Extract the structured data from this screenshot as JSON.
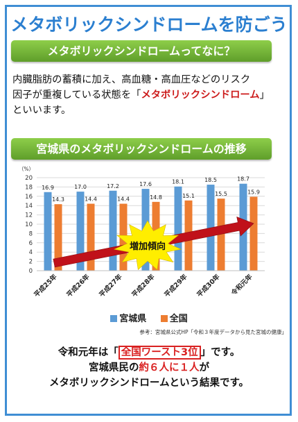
{
  "title": "メタボリックシンドロームを防ごう",
  "section1": {
    "banner": "メタボリックシンドロームってなに？",
    "line1": "内臓脂肪の蓄積に加え、高血糖・高血圧などのリスク",
    "line2_before": "因子が重複している状態を「",
    "line2_highlight": "メタボリックシンドローム",
    "line2_after": "」",
    "line3": "といいます。"
  },
  "section2": {
    "banner": "宮城県のメタボリックシンドロームの推移"
  },
  "chart_data": {
    "type": "bar",
    "unit_label": "（%）",
    "categories": [
      "平成25年",
      "平成26年",
      "平成27年",
      "平成28年",
      "平成29年",
      "平成30年",
      "令和元年"
    ],
    "series": [
      {
        "name": "宮城県",
        "values": [
          16.9,
          17.0,
          17.2,
          17.6,
          18.1,
          18.5,
          18.7
        ]
      },
      {
        "name": "全国",
        "values": [
          14.3,
          14.4,
          14.4,
          14.8,
          15.1,
          15.5,
          15.9
        ]
      }
    ],
    "ylim": [
      0,
      20
    ],
    "yticks": [
      0,
      2,
      4,
      6,
      8,
      10,
      12,
      14,
      16,
      18,
      20
    ],
    "grid": true,
    "legend": "bottom",
    "annotation": "増加傾向",
    "colors": {
      "宮城県": "#5b9bd5",
      "全国": "#ed7d31",
      "arrow": "#c0111a",
      "burst": "#ffee00"
    }
  },
  "source": "参考：宮城県公式HP「令和３年度データから見た宮城の健康」",
  "result": {
    "line1_before": "令和元年は「",
    "line1_box": "全国ワースト3位",
    "line1_after": "」です。",
    "line2_before": "宮城県民の",
    "line2_red": "約６人に１人",
    "line2_after": "が",
    "line3": "メタボリックシンドロームという結果です。"
  }
}
